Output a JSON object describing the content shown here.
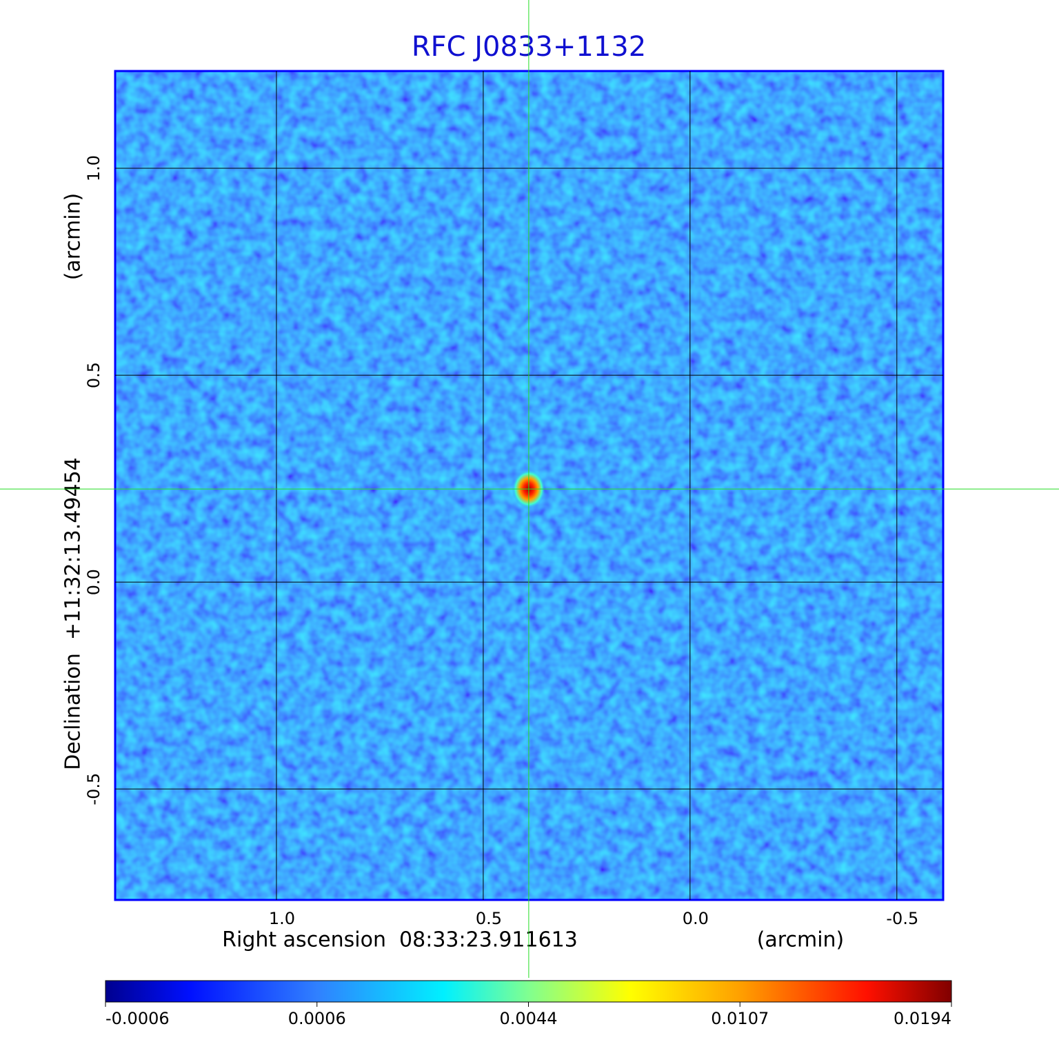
{
  "chart_data": {
    "type": "image",
    "title": "RFC J0833+1132",
    "x_label": "Right ascension  08:33:23.911613",
    "x_unit": "(arcmin)",
    "y_label": "Declination  +11:32:13.49454",
    "y_unit": "(arcmin)",
    "xlim": [
      1.39,
      -0.612
    ],
    "ylim": [
      -0.768,
      1.235
    ],
    "xticks": [
      {
        "value": 1.0,
        "label": "1.0"
      },
      0.5,
      {
        "value": 0.0,
        "label": "0.0"
      },
      -0.5
    ],
    "yticks": [
      -0.5,
      {
        "value": 0.0,
        "label": "0.0"
      },
      0.5,
      {
        "value": 1.0,
        "label": "1.0"
      }
    ],
    "grid": true,
    "crosshair": {
      "x": 0.39,
      "y": 0.225
    },
    "colorbar": {
      "ticks": [
        -0.0006,
        0.0006,
        0.0044,
        0.0107,
        0.0194
      ]
    }
  }
}
